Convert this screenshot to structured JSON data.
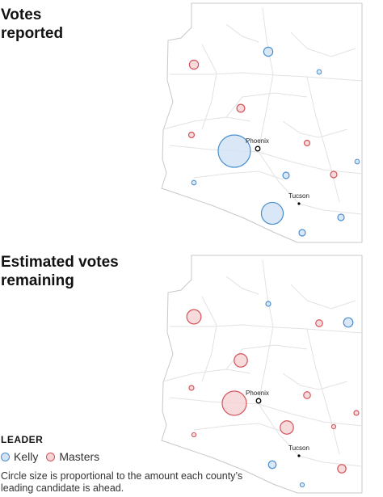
{
  "panels": [
    {
      "title_line1": "Votes",
      "title_line2": "reported",
      "phoenix_label": "Phoenix",
      "tucson_label": "Tucson",
      "circles": [
        {
          "leader": "Masters",
          "share": 0.08
        },
        {
          "leader": "Kelly",
          "share": 0.08
        },
        {
          "leader": "Kelly",
          "share": 0.02
        },
        {
          "leader": "Masters",
          "share": 0.06
        },
        {
          "leader": "Masters",
          "share": 0.03
        },
        {
          "leader": "Kelly",
          "share": 1.0
        },
        {
          "leader": "Masters",
          "share": 0.03
        },
        {
          "leader": "Kelly",
          "share": 0.04
        },
        {
          "leader": "Masters",
          "share": 0.04
        },
        {
          "leader": "Kelly",
          "share": 0.02
        },
        {
          "leader": "Kelly",
          "share": 0.02
        },
        {
          "leader": "Kelly",
          "share": 0.46
        },
        {
          "leader": "Kelly",
          "share": 0.04
        },
        {
          "leader": "Kelly",
          "share": 0.04
        }
      ]
    },
    {
      "title_line1": "Estimated votes",
      "title_line2": "remaining",
      "phoenix_label": "Phoenix",
      "tucson_label": "Tucson",
      "circles": [
        {
          "leader": "Masters",
          "share": 0.35
        },
        {
          "leader": "Kelly",
          "share": 0.04
        },
        {
          "leader": "Masters",
          "share": 0.08
        },
        {
          "leader": "Kelly",
          "share": 0.15
        },
        {
          "leader": "Masters",
          "share": 0.3
        },
        {
          "leader": "Masters",
          "share": 0.04
        },
        {
          "leader": "Masters",
          "share": 1.0
        },
        {
          "leader": "Masters",
          "share": 0.08
        },
        {
          "leader": "Masters",
          "share": 0.3
        },
        {
          "leader": "Masters",
          "share": 0.03
        },
        {
          "leader": "Masters",
          "share": 0.03
        },
        {
          "leader": "Masters",
          "share": 0.04
        },
        {
          "leader": "Kelly",
          "share": 0.1
        },
        {
          "leader": "Masters",
          "share": 0.12
        },
        {
          "leader": "Kelly",
          "share": 0.03
        }
      ]
    }
  ],
  "legend": {
    "heading": "LEADER",
    "items": [
      {
        "label": "Kelly",
        "stroke": "#4b8fcf",
        "fill": "#d3e3f4"
      },
      {
        "label": "Masters",
        "stroke": "#d4535a",
        "fill": "#f6d3d5"
      }
    ],
    "note": "Circle size is proportional to the amount each county’s leading candidate is ahead."
  },
  "colors": {
    "kelly_stroke": "#4b8fcf",
    "kelly_fill": "#d3e3f4",
    "masters_stroke": "#d4535a",
    "masters_fill": "#f6d3d5",
    "state_fill": "#ffffff",
    "outline": "#c8c8c8",
    "roads": "#e2e2e2"
  }
}
